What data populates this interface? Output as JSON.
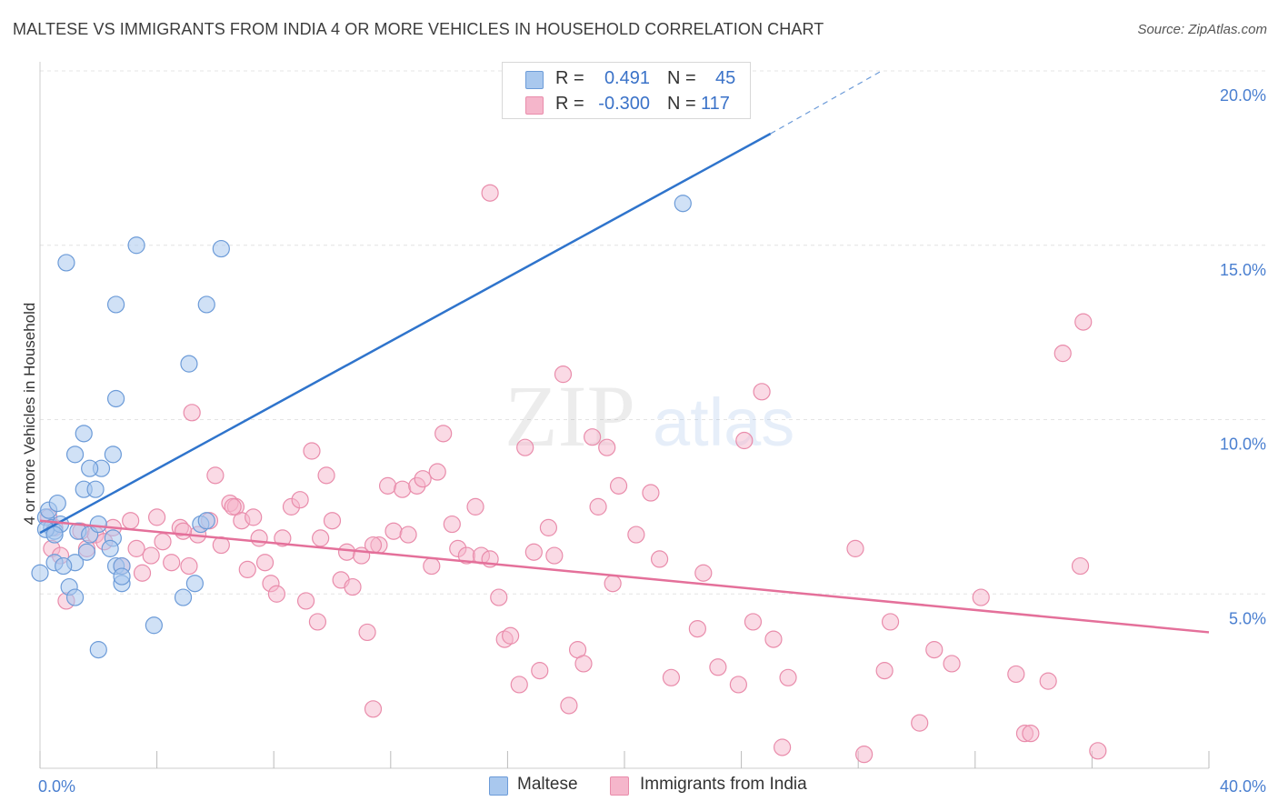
{
  "title": "MALTESE VS IMMIGRANTS FROM INDIA 4 OR MORE VEHICLES IN HOUSEHOLD CORRELATION CHART",
  "source": "Source: ZipAtlas.com",
  "watermark": {
    "zip": "ZIP",
    "atlas": "atlas"
  },
  "legend": {
    "r_label": "R =",
    "n_label": "N =",
    "rows": [
      {
        "r": "0.491",
        "n": "45"
      },
      {
        "r": "-0.300",
        "n": "117"
      }
    ]
  },
  "bottom_legend": [
    "Maltese",
    "Immigrants from India"
  ],
  "colors": {
    "blue_fill": "#a9c8ee",
    "blue_stroke": "#6c9bd8",
    "blue_line": "#2f74cc",
    "pink_fill": "#f5b6cb",
    "pink_stroke": "#e98cab",
    "pink_line": "#e4709a",
    "tick_text": "#4a7fd0",
    "grid": "#e4e4e4"
  },
  "chart_data": {
    "type": "scatter",
    "xlabel": "",
    "ylabel": "4 or more Vehicles in Household",
    "xlim": [
      0,
      40
    ],
    "ylim": [
      0,
      20
    ],
    "x_tick_labels": [
      {
        "v": 0,
        "label": "0.0%"
      },
      {
        "v": 40,
        "label": "40.0%"
      }
    ],
    "y_tick_labels": [
      {
        "v": 5,
        "label": "5.0%"
      },
      {
        "v": 10,
        "label": "10.0%"
      },
      {
        "v": 15,
        "label": "15.0%"
      },
      {
        "v": 20,
        "label": "20.0%"
      }
    ],
    "series": [
      {
        "name": "Maltese",
        "r": 0.491,
        "n": 45,
        "trend": {
          "x1": 0,
          "y1": 6.75,
          "x2": 25.0,
          "y2": 18.2,
          "dash_to_x": 28.8,
          "dash_to_y": 20.0
        },
        "points": [
          [
            0.2,
            7.2
          ],
          [
            0.4,
            6.9
          ],
          [
            0.3,
            7.4
          ],
          [
            0.5,
            6.8
          ],
          [
            0.6,
            7.6
          ],
          [
            0.2,
            6.85
          ],
          [
            0.7,
            7.0
          ],
          [
            0.5,
            5.9
          ],
          [
            1.2,
            5.9
          ],
          [
            1.0,
            5.2
          ],
          [
            1.2,
            4.9
          ],
          [
            0.0,
            5.6
          ],
          [
            0.8,
            5.8
          ],
          [
            1.3,
            6.8
          ],
          [
            1.6,
            6.2
          ],
          [
            1.7,
            6.7
          ],
          [
            1.5,
            8.0
          ],
          [
            1.9,
            8.0
          ],
          [
            2.0,
            7.0
          ],
          [
            2.1,
            8.6
          ],
          [
            1.7,
            8.6
          ],
          [
            2.5,
            6.6
          ],
          [
            2.4,
            6.3
          ],
          [
            2.6,
            5.8
          ],
          [
            2.8,
            5.8
          ],
          [
            2.8,
            5.3
          ],
          [
            2.8,
            5.5
          ],
          [
            1.5,
            9.6
          ],
          [
            1.2,
            9.0
          ],
          [
            2.5,
            9.0
          ],
          [
            2.6,
            10.6
          ],
          [
            2.6,
            13.3
          ],
          [
            0.9,
            14.5
          ],
          [
            3.3,
            15.0
          ],
          [
            3.9,
            4.1
          ],
          [
            2.0,
            3.4
          ],
          [
            4.9,
            4.9
          ],
          [
            5.3,
            5.3
          ],
          [
            5.5,
            7.0
          ],
          [
            5.7,
            7.1
          ],
          [
            5.7,
            13.3
          ],
          [
            5.1,
            11.6
          ],
          [
            6.2,
            14.9
          ],
          [
            22.0,
            16.2
          ],
          [
            0.5,
            6.7
          ]
        ]
      },
      {
        "name": "Immigrants from India",
        "r": -0.3,
        "n": 117,
        "trend": {
          "x1": 0,
          "y1": 7.1,
          "x2": 40,
          "y2": 3.9
        },
        "points": [
          [
            0.3,
            7.2
          ],
          [
            0.5,
            6.9
          ],
          [
            0.4,
            6.3
          ],
          [
            0.7,
            6.1
          ],
          [
            0.9,
            4.8
          ],
          [
            1.4,
            6.8
          ],
          [
            1.6,
            6.3
          ],
          [
            1.9,
            6.7
          ],
          [
            2.2,
            6.5
          ],
          [
            2.5,
            6.9
          ],
          [
            2.8,
            5.8
          ],
          [
            3.1,
            7.1
          ],
          [
            3.3,
            6.3
          ],
          [
            3.5,
            5.6
          ],
          [
            3.8,
            6.1
          ],
          [
            4.0,
            7.2
          ],
          [
            4.2,
            6.5
          ],
          [
            4.5,
            5.9
          ],
          [
            4.8,
            6.9
          ],
          [
            5.1,
            5.8
          ],
          [
            5.2,
            10.2
          ],
          [
            5.4,
            6.7
          ],
          [
            5.8,
            7.1
          ],
          [
            6.0,
            8.4
          ],
          [
            6.2,
            6.4
          ],
          [
            6.5,
            7.6
          ],
          [
            6.7,
            7.5
          ],
          [
            6.9,
            7.1
          ],
          [
            7.1,
            5.7
          ],
          [
            7.3,
            7.2
          ],
          [
            7.5,
            6.6
          ],
          [
            7.7,
            5.9
          ],
          [
            7.9,
            5.3
          ],
          [
            8.1,
            5.0
          ],
          [
            8.3,
            6.6
          ],
          [
            8.6,
            7.5
          ],
          [
            8.9,
            7.7
          ],
          [
            9.1,
            4.8
          ],
          [
            9.3,
            9.1
          ],
          [
            9.5,
            4.2
          ],
          [
            9.8,
            8.4
          ],
          [
            10.0,
            7.1
          ],
          [
            10.3,
            5.4
          ],
          [
            10.5,
            6.2
          ],
          [
            10.7,
            5.2
          ],
          [
            11.0,
            6.1
          ],
          [
            11.2,
            3.9
          ],
          [
            11.4,
            1.7
          ],
          [
            11.6,
            6.4
          ],
          [
            11.9,
            8.1
          ],
          [
            12.1,
            6.8
          ],
          [
            12.4,
            8.0
          ],
          [
            12.6,
            6.7
          ],
          [
            12.9,
            8.1
          ],
          [
            13.1,
            8.3
          ],
          [
            13.4,
            5.8
          ],
          [
            13.6,
            8.5
          ],
          [
            13.8,
            9.6
          ],
          [
            14.1,
            7.0
          ],
          [
            14.3,
            6.3
          ],
          [
            14.6,
            6.1
          ],
          [
            14.9,
            7.5
          ],
          [
            15.1,
            6.1
          ],
          [
            15.4,
            6.0
          ],
          [
            15.7,
            4.9
          ],
          [
            15.9,
            3.7
          ],
          [
            16.1,
            3.8
          ],
          [
            16.4,
            2.4
          ],
          [
            16.6,
            9.2
          ],
          [
            16.9,
            6.2
          ],
          [
            17.1,
            2.8
          ],
          [
            17.4,
            6.9
          ],
          [
            17.6,
            6.1
          ],
          [
            17.9,
            11.3
          ],
          [
            18.1,
            1.8
          ],
          [
            18.4,
            3.4
          ],
          [
            18.6,
            3.0
          ],
          [
            18.9,
            9.5
          ],
          [
            19.1,
            7.5
          ],
          [
            19.4,
            9.2
          ],
          [
            19.6,
            5.3
          ],
          [
            19.8,
            8.1
          ],
          [
            20.4,
            6.7
          ],
          [
            20.9,
            7.9
          ],
          [
            21.2,
            6.0
          ],
          [
            21.6,
            2.6
          ],
          [
            22.5,
            4.0
          ],
          [
            22.7,
            5.6
          ],
          [
            23.2,
            2.9
          ],
          [
            23.9,
            2.4
          ],
          [
            24.1,
            9.4
          ],
          [
            24.7,
            10.8
          ],
          [
            24.4,
            4.2
          ],
          [
            25.1,
            3.7
          ],
          [
            25.4,
            0.6
          ],
          [
            25.6,
            2.6
          ],
          [
            27.9,
            6.3
          ],
          [
            28.2,
            0.4
          ],
          [
            28.9,
            2.8
          ],
          [
            29.1,
            4.2
          ],
          [
            30.1,
            1.3
          ],
          [
            30.6,
            3.4
          ],
          [
            31.2,
            3.0
          ],
          [
            32.2,
            4.9
          ],
          [
            33.4,
            2.7
          ],
          [
            33.7,
            1.0
          ],
          [
            33.9,
            1.0
          ],
          [
            34.5,
            2.5
          ],
          [
            35.0,
            11.9
          ],
          [
            35.6,
            5.8
          ],
          [
            36.2,
            0.5
          ],
          [
            35.7,
            12.8
          ],
          [
            15.4,
            16.5
          ],
          [
            11.4,
            6.4
          ],
          [
            9.6,
            6.6
          ],
          [
            6.6,
            7.5
          ],
          [
            4.9,
            6.8
          ]
        ]
      }
    ]
  }
}
